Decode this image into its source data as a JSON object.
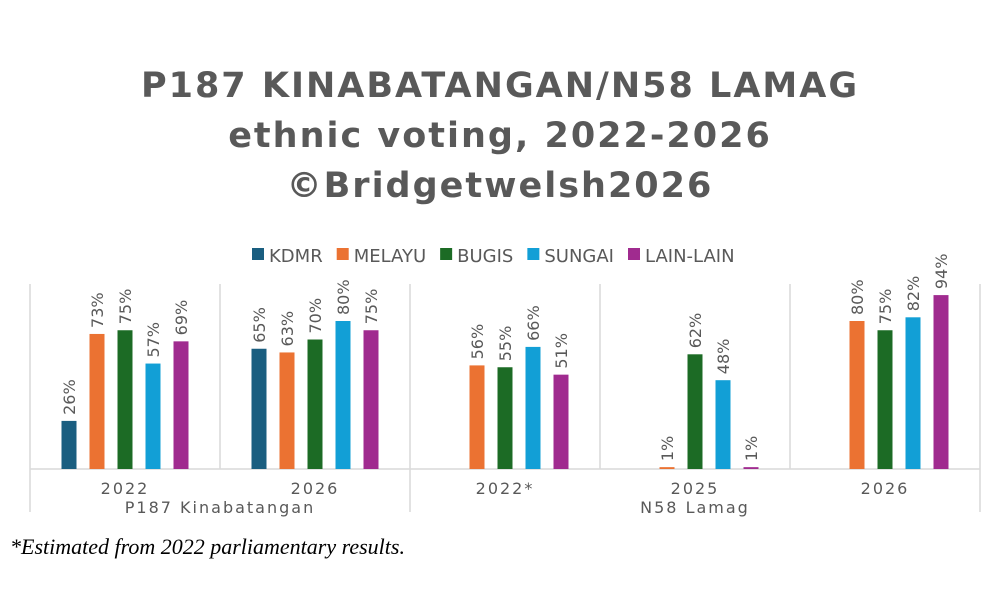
{
  "chart_data": {
    "type": "bar",
    "title_lines": [
      "P187 KINABATANGAN/N58 LAMAG",
      "ethnic voting, 2022-2026",
      "©Bridgetwelsh2026"
    ],
    "legend_position": "top",
    "grid": false,
    "ylim": [
      0,
      100
    ],
    "value_format": "percent",
    "regions": [
      {
        "label": "P187 Kinabatangan",
        "categories": [
          "2022",
          "2026"
        ]
      },
      {
        "label": "N58 Lamag",
        "categories": [
          "2022*",
          "2025",
          "2026"
        ]
      }
    ],
    "categories": [
      "2022",
      "2026",
      "2022*",
      "2025",
      "2026"
    ],
    "series": [
      {
        "name": "KDMR",
        "color": "#1a5e80",
        "values": [
          26,
          65,
          null,
          null,
          null
        ]
      },
      {
        "name": "MELAYU",
        "color": "#eb7232",
        "values": [
          73,
          63,
          56,
          1,
          80
        ]
      },
      {
        "name": "BUGIS",
        "color": "#1c6b25",
        "values": [
          75,
          70,
          55,
          62,
          75
        ]
      },
      {
        "name": "SUNGAI",
        "color": "#129fd6",
        "values": [
          57,
          80,
          66,
          48,
          82
        ]
      },
      {
        "name": "LAIN-LAIN",
        "color": "#a02b8f",
        "values": [
          69,
          75,
          51,
          1,
          94
        ]
      }
    ]
  },
  "footnote": "*Estimated from 2022 parliamentary results."
}
